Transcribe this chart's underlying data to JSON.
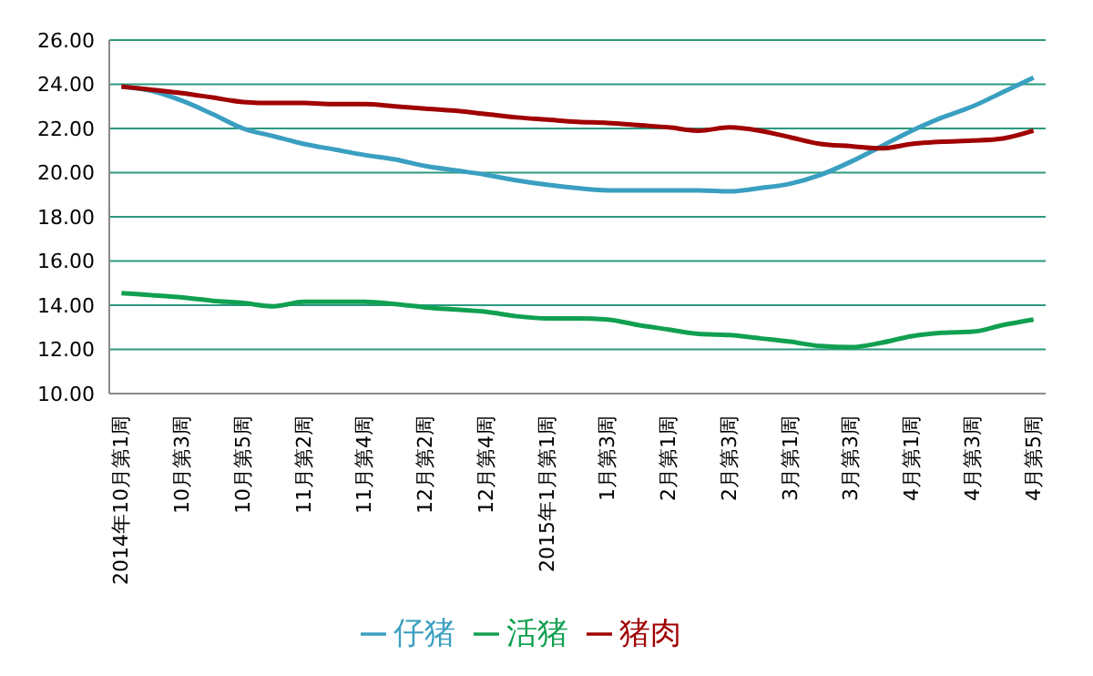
{
  "chart_data": {
    "type": "line",
    "categories": [
      "2014年10月第1周",
      null,
      "10月第3周",
      null,
      "10月第5周",
      null,
      "11月第2周",
      null,
      "11月第4周",
      null,
      "12月第2周",
      null,
      "12月第4周",
      null,
      "2015年1月第1周",
      null,
      "1月第3周",
      null,
      "2月第1周",
      null,
      "2月第3周",
      null,
      "3月第1周",
      null,
      "3月第3周",
      null,
      "4月第1周",
      null,
      "4月第3周",
      null,
      "4月第5周"
    ],
    "series": [
      {
        "name": "仔猪",
        "color": "#3a9fc0",
        "values": [
          23.9,
          23.7,
          23.25,
          22.65,
          22.0,
          21.65,
          21.3,
          21.05,
          20.8,
          20.6,
          20.3,
          20.1,
          19.9,
          19.65,
          19.45,
          19.3,
          19.2,
          19.2,
          19.2,
          19.2,
          19.15,
          19.3,
          19.5,
          19.9,
          20.5,
          21.2,
          21.9,
          22.5,
          23.0,
          23.65,
          24.3
        ]
      },
      {
        "name": "活猪",
        "color": "#10a050",
        "values": [
          14.55,
          14.45,
          14.35,
          14.2,
          14.1,
          13.95,
          14.15,
          14.15,
          14.15,
          14.05,
          13.9,
          13.8,
          13.7,
          13.5,
          13.4,
          13.4,
          13.35,
          13.1,
          12.9,
          12.7,
          12.65,
          12.5,
          12.35,
          12.15,
          12.1,
          12.3,
          12.6,
          12.75,
          12.8,
          13.1,
          13.35
        ]
      },
      {
        "name": "猪肉",
        "color": "#a00000",
        "values": [
          23.9,
          23.75,
          23.6,
          23.4,
          23.2,
          23.15,
          23.15,
          23.1,
          23.1,
          23.0,
          22.9,
          22.8,
          22.65,
          22.5,
          22.4,
          22.3,
          22.25,
          22.15,
          22.05,
          21.9,
          22.05,
          21.9,
          21.6,
          21.3,
          21.2,
          21.1,
          21.3,
          21.4,
          21.45,
          21.55,
          21.9
        ]
      }
    ],
    "ylim": [
      10,
      26
    ],
    "yticks": [
      {
        "value": 10,
        "label": "10.00"
      },
      {
        "value": 12,
        "label": "12.00"
      },
      {
        "value": 14,
        "label": "14.00"
      },
      {
        "value": 16,
        "label": "16.00"
      },
      {
        "value": 18,
        "label": "18.00"
      },
      {
        "value": 20,
        "label": "20.00"
      },
      {
        "value": 22,
        "label": "22.00"
      },
      {
        "value": 24,
        "label": "24.00"
      },
      {
        "value": 26,
        "label": "26.00"
      }
    ],
    "grid": "y",
    "legend": "bottom",
    "marker": "none",
    "line_style": "solid"
  }
}
